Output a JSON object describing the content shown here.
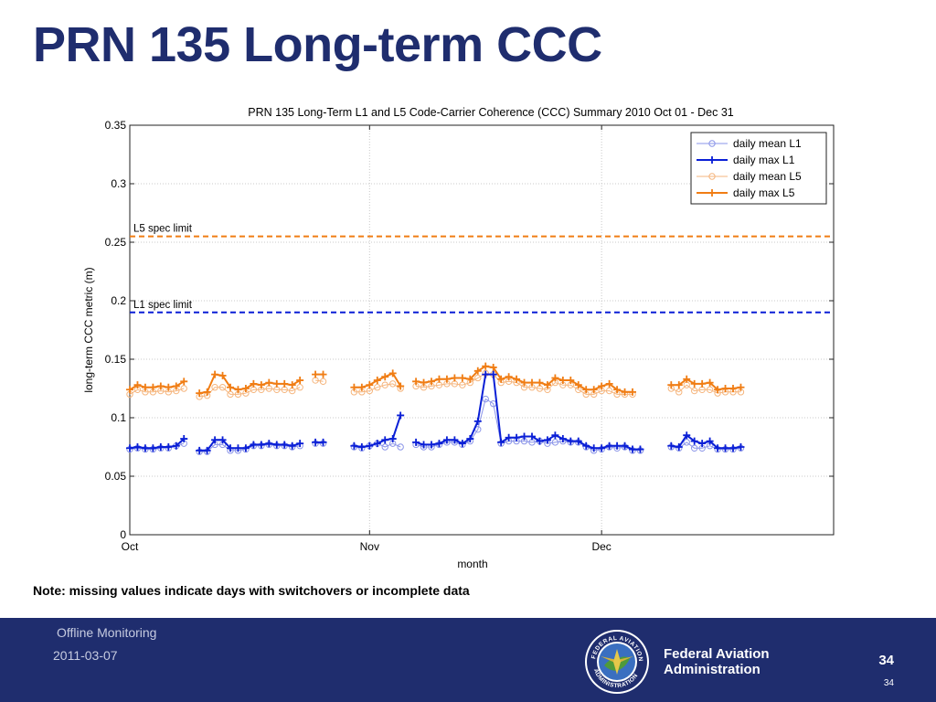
{
  "slide": {
    "title": "PRN 135 Long-term CCC",
    "note": "Note: missing values indicate days with switchovers or incomplete data"
  },
  "footer": {
    "org": "Offline Monitoring",
    "date": "2011-03-07",
    "agency_line1": "Federal Aviation",
    "agency_line2": "Administration",
    "page": "34",
    "page_small": "34",
    "seal_text": "FEDERAL AVIATION ADMINISTRATION"
  },
  "colors": {
    "title": "#1f2d6e",
    "footer_bg": "#1f2d6e",
    "l1": "#0a1fd6",
    "l5": "#f07d14",
    "l1_light": "#8a94e8",
    "l5_light": "#f5b57d"
  },
  "chart_data": {
    "type": "line",
    "title": "PRN 135 Long-Term L1 and L5 Code-Carrier Coherence (CCC) Summary 2010 Oct 01 - Dec 31",
    "xlabel": "month",
    "ylabel": "long-term CCC metric (m)",
    "x_unit": "day of 2010 (day 1 = Oct 01)",
    "xlim": [
      1,
      92
    ],
    "ylim": [
      0,
      0.35
    ],
    "y_ticks": [
      0,
      0.05,
      0.1,
      0.15,
      0.2,
      0.25,
      0.3,
      0.35
    ],
    "y_tick_labels": [
      "0",
      "0.05",
      "0.1",
      "0.15",
      "0.2",
      "0.25",
      "0.3",
      "0.35"
    ],
    "x_ticks": [
      1,
      32,
      62
    ],
    "x_tick_labels": [
      "Oct",
      "Nov",
      "Dec"
    ],
    "grid": true,
    "legend_position": "top-right",
    "reference_lines": [
      {
        "label": "L5 spec limit",
        "y": 0.255,
        "color": "#f07d14",
        "style": "dashed"
      },
      {
        "label": "L1 spec limit",
        "y": 0.19,
        "color": "#0a1fd6",
        "style": "dashed"
      }
    ],
    "x": [
      1,
      2,
      3,
      4,
      5,
      6,
      7,
      8,
      9,
      10,
      11,
      12,
      13,
      14,
      15,
      16,
      17,
      18,
      19,
      20,
      21,
      22,
      23,
      24,
      25,
      26,
      27,
      28,
      29,
      30,
      31,
      32,
      33,
      34,
      35,
      36,
      37,
      38,
      39,
      40,
      41,
      42,
      43,
      44,
      45,
      46,
      47,
      48,
      49,
      50,
      51,
      52,
      53,
      54,
      55,
      56,
      57,
      58,
      59,
      60,
      61,
      62,
      63,
      64,
      65,
      66,
      67,
      68,
      69,
      70,
      71,
      72,
      73,
      74,
      75,
      76,
      77,
      78,
      79,
      80,
      81,
      82,
      83,
      84,
      85,
      86,
      87,
      88,
      89,
      90,
      91,
      92
    ],
    "series": [
      {
        "name": "daily mean L1",
        "color": "#8a94e8",
        "marker": "circle",
        "line_width": 1,
        "values": [
          0.073,
          0.074,
          0.073,
          0.073,
          0.074,
          0.074,
          0.076,
          0.078,
          null,
          0.071,
          0.071,
          0.077,
          0.077,
          0.072,
          0.072,
          0.073,
          0.076,
          0.076,
          0.077,
          0.076,
          0.076,
          0.075,
          0.076,
          null,
          0.078,
          0.078,
          null,
          null,
          null,
          0.075,
          0.074,
          0.076,
          0.078,
          0.075,
          0.078,
          0.075,
          null,
          0.077,
          0.075,
          0.075,
          0.077,
          0.079,
          0.079,
          0.077,
          0.08,
          0.09,
          0.116,
          0.112,
          0.078,
          0.08,
          0.08,
          0.08,
          0.079,
          0.08,
          0.078,
          0.079,
          0.08,
          0.079,
          0.079,
          0.075,
          0.072,
          0.073,
          0.075,
          0.074,
          0.075,
          0.072,
          0.072,
          null,
          null,
          null,
          0.075,
          0.074,
          0.079,
          0.074,
          0.074,
          0.076,
          0.073,
          0.073,
          0.073,
          0.074,
          null,
          null,
          null,
          null,
          null,
          null,
          null,
          null,
          null,
          null,
          null,
          null
        ]
      },
      {
        "name": "daily max L1",
        "color": "#0a1fd6",
        "marker": "plus",
        "line_width": 2,
        "values": [
          0.074,
          0.075,
          0.074,
          0.074,
          0.075,
          0.075,
          0.076,
          0.082,
          null,
          0.072,
          0.072,
          0.081,
          0.081,
          0.074,
          0.074,
          0.074,
          0.077,
          0.077,
          0.078,
          0.077,
          0.077,
          0.076,
          0.078,
          null,
          0.079,
          0.079,
          null,
          null,
          null,
          0.076,
          0.075,
          0.076,
          0.078,
          0.081,
          0.082,
          0.102,
          null,
          0.079,
          0.077,
          0.077,
          0.078,
          0.081,
          0.081,
          0.078,
          0.082,
          0.097,
          0.137,
          0.137,
          0.079,
          0.083,
          0.083,
          0.084,
          0.084,
          0.08,
          0.081,
          0.085,
          0.082,
          0.08,
          0.08,
          0.076,
          0.074,
          0.074,
          0.076,
          0.076,
          0.076,
          0.073,
          0.073,
          null,
          null,
          null,
          0.076,
          0.075,
          0.085,
          0.08,
          0.078,
          0.08,
          0.074,
          0.074,
          0.074,
          0.075,
          null,
          null,
          null,
          null,
          null,
          null,
          null,
          null,
          null,
          null,
          null,
          null
        ]
      },
      {
        "name": "daily mean L5",
        "color": "#f5b57d",
        "marker": "circle",
        "line_width": 1,
        "values": [
          0.12,
          0.124,
          0.122,
          0.122,
          0.123,
          0.122,
          0.123,
          0.125,
          null,
          0.118,
          0.119,
          0.126,
          0.126,
          0.12,
          0.12,
          0.121,
          0.124,
          0.124,
          0.125,
          0.124,
          0.124,
          0.123,
          0.126,
          null,
          0.132,
          0.131,
          null,
          null,
          null,
          0.122,
          0.122,
          0.123,
          0.126,
          0.128,
          0.129,
          0.125,
          null,
          0.127,
          0.126,
          0.127,
          0.128,
          0.129,
          0.129,
          0.128,
          0.13,
          0.134,
          0.138,
          0.137,
          0.13,
          0.131,
          0.13,
          0.126,
          0.126,
          0.125,
          0.124,
          0.13,
          0.128,
          0.128,
          0.124,
          0.12,
          0.12,
          0.123,
          0.123,
          0.12,
          0.12,
          0.12,
          null,
          null,
          null,
          null,
          0.125,
          0.122,
          0.128,
          0.123,
          0.124,
          0.124,
          0.121,
          0.122,
          0.122,
          0.122,
          null,
          null,
          null,
          null,
          null,
          null,
          null,
          null,
          null,
          null,
          null,
          null
        ]
      },
      {
        "name": "daily max L5",
        "color": "#f07d14",
        "marker": "plus",
        "line_width": 2,
        "values": [
          0.124,
          0.128,
          0.126,
          0.126,
          0.127,
          0.126,
          0.127,
          0.131,
          null,
          0.121,
          0.122,
          0.137,
          0.136,
          0.126,
          0.124,
          0.125,
          0.129,
          0.128,
          0.13,
          0.129,
          0.129,
          0.128,
          0.132,
          null,
          0.137,
          0.137,
          null,
          null,
          null,
          0.126,
          0.126,
          0.128,
          0.132,
          0.135,
          0.138,
          0.127,
          null,
          0.131,
          0.13,
          0.131,
          0.133,
          0.133,
          0.134,
          0.134,
          0.133,
          0.14,
          0.144,
          0.143,
          0.133,
          0.135,
          0.133,
          0.13,
          0.13,
          0.13,
          0.128,
          0.134,
          0.132,
          0.132,
          0.128,
          0.124,
          0.124,
          0.127,
          0.129,
          0.124,
          0.122,
          0.122,
          null,
          null,
          null,
          null,
          0.128,
          0.128,
          0.133,
          0.129,
          0.129,
          0.13,
          0.124,
          0.125,
          0.125,
          0.126,
          null,
          null,
          null,
          null,
          null,
          null,
          null,
          null,
          null,
          null,
          null,
          null
        ]
      }
    ]
  }
}
